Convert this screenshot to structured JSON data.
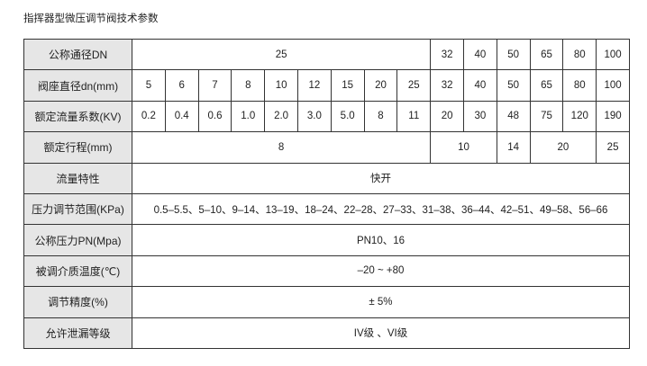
{
  "title": "指挥器型微压调节阀技术参数",
  "table": {
    "dn": {
      "label": "公称通径DN",
      "group": "25",
      "values": [
        "32",
        "40",
        "50",
        "65",
        "80",
        "100"
      ]
    },
    "seat": {
      "label": "阀座直径dn(mm)",
      "values": [
        "5",
        "6",
        "7",
        "8",
        "10",
        "12",
        "15",
        "20",
        "25",
        "32",
        "40",
        "50",
        "65",
        "80",
        "100"
      ]
    },
    "kv": {
      "label": "额定流量系数(KV)",
      "values": [
        "0.2",
        "0.4",
        "0.6",
        "1.0",
        "2.0",
        "3.0",
        "5.0",
        "8",
        "11",
        "20",
        "30",
        "48",
        "75",
        "120",
        "190"
      ]
    },
    "stroke": {
      "label": "额定行程(mm)",
      "values": [
        "8",
        "10",
        "14",
        "20",
        "25"
      ]
    },
    "flow": {
      "label": "流量特性",
      "value": "快开"
    },
    "pressure_range": {
      "label": "压力调节范围(KPa)",
      "value": "0.5–5.5、5–10、9–14、13–19、18–24、22–28、27–33、31–38、36–44、42–51、49–58、56–66"
    },
    "pn": {
      "label": "公称压力PN(Mpa)",
      "value": "PN10、16"
    },
    "temp": {
      "label": "被调介质温度(℃)",
      "value": "–20 ~ +80"
    },
    "accuracy": {
      "label": "调节精度(%)",
      "value": "± 5%"
    },
    "leakage": {
      "label": "允许泄漏等级",
      "value": "IV级 、VI级"
    }
  }
}
